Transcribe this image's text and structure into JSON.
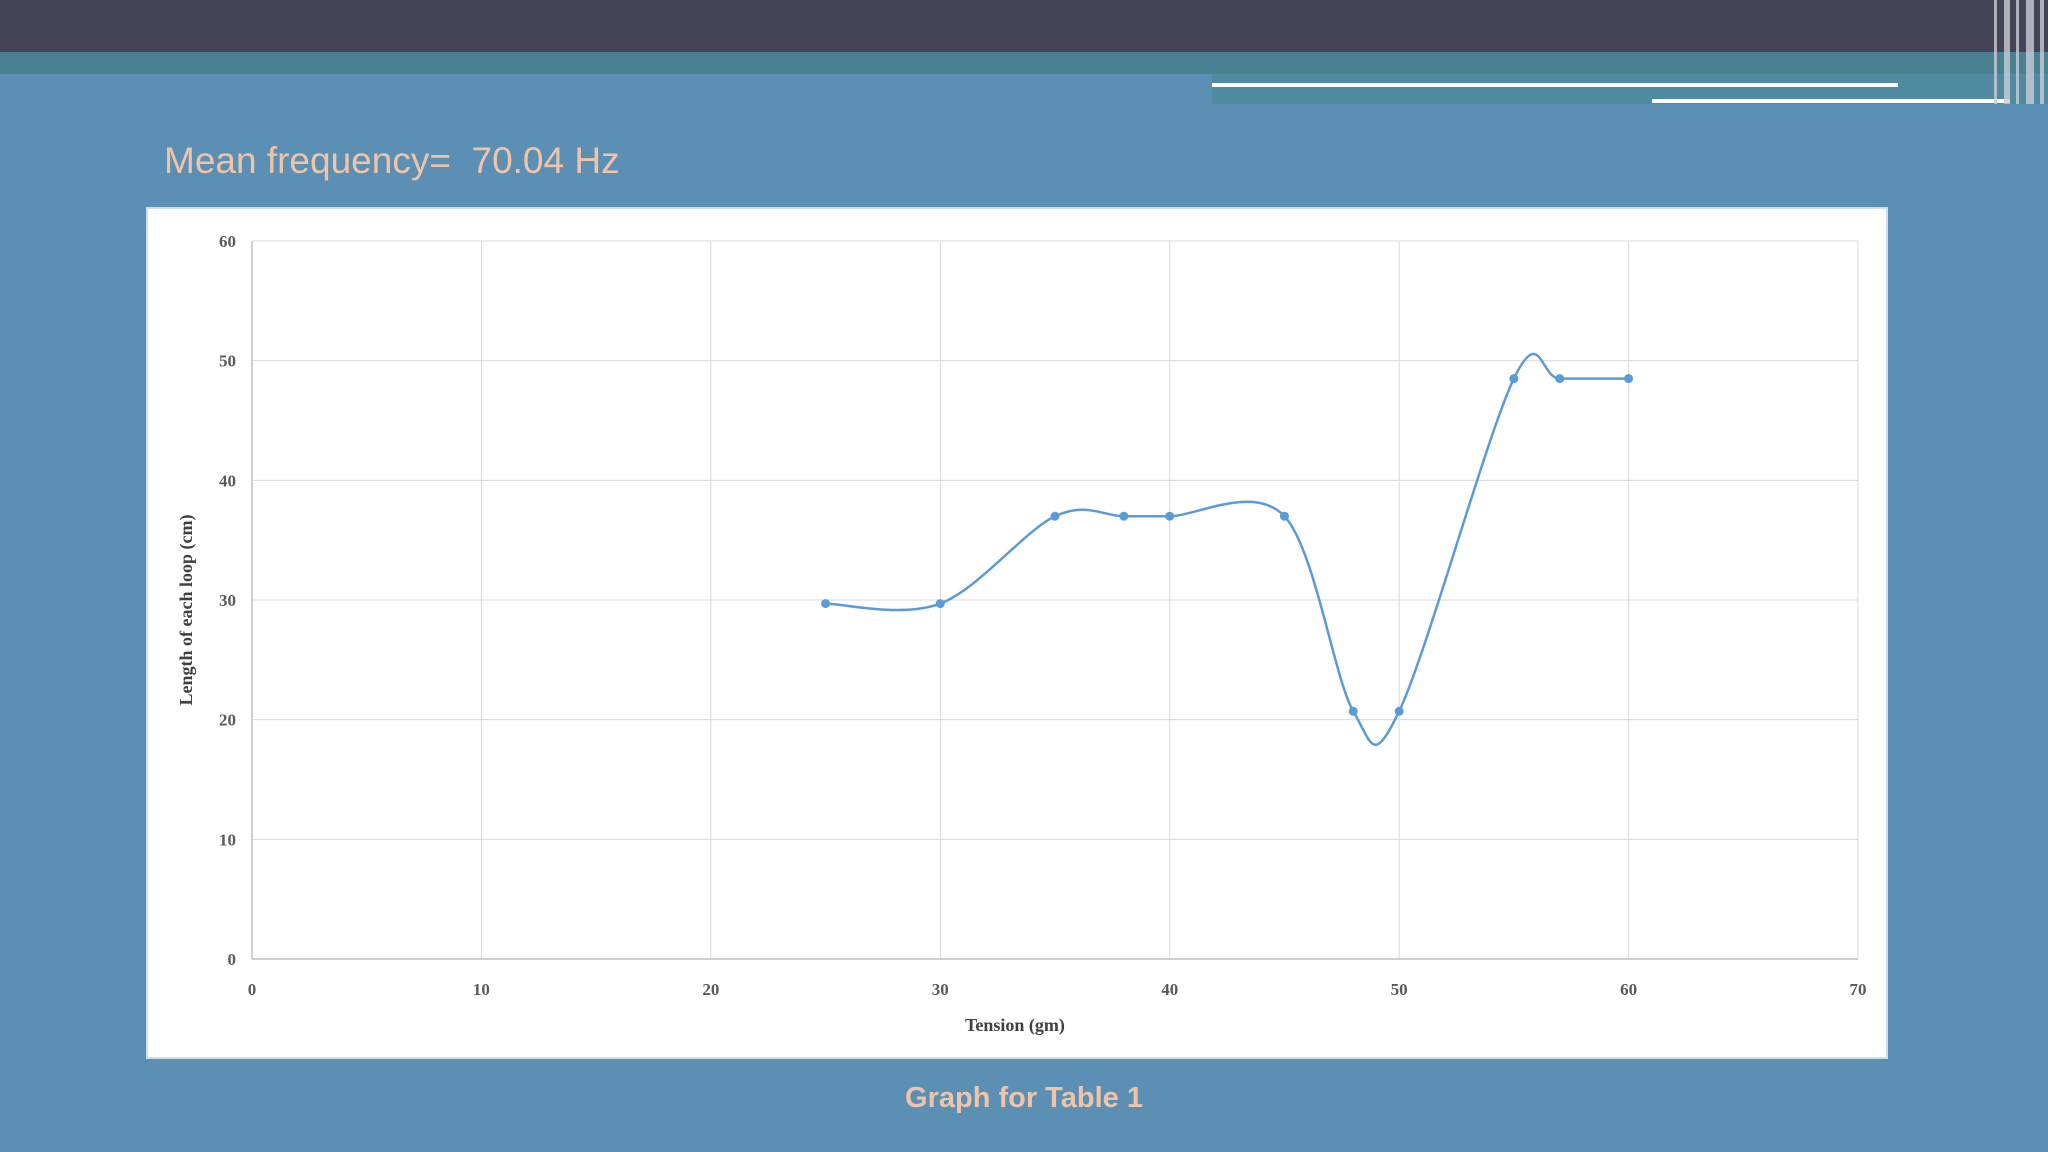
{
  "header": {
    "subtitle": "Mean frequency=  70.04 Hz",
    "caption": "Graph for Table 1"
  },
  "colors": {
    "background": "#5b8fb3",
    "topbar": "#434455",
    "accent_text": "#f0c4a8",
    "series": "#5b9bd5"
  },
  "chart_data": {
    "type": "line",
    "smooth": true,
    "xlabel": "Tension (gm)",
    "ylabel": "Length of each loop (cm)",
    "xlim": [
      0,
      70
    ],
    "ylim": [
      0,
      60
    ],
    "xticks": [
      "0",
      "10",
      "20",
      "30",
      "40",
      "50",
      "60",
      "70"
    ],
    "yticks": [
      "0",
      "10",
      "20",
      "30",
      "40",
      "50",
      "60"
    ],
    "grid": true,
    "series": [
      {
        "x": [
          25,
          30,
          35,
          38,
          40,
          45,
          48,
          50,
          55,
          57,
          60
        ],
        "y": [
          29.7,
          29.7,
          37,
          37,
          37,
          37,
          20.7,
          20.7,
          48.5,
          48.5,
          48.5
        ]
      }
    ]
  }
}
